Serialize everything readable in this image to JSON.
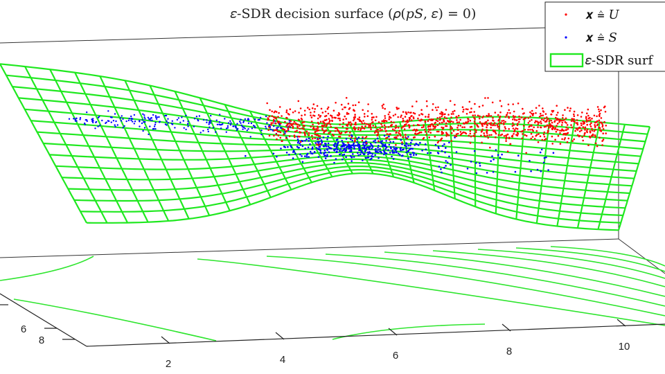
{
  "chart_data": {
    "type": "scatter",
    "title": "ε-SDR decision surface (ρ(p_S, ε) = 0)",
    "title_display": "𝜀-SDR decision surface (𝜌(𝑝𝑆, 𝜀) = 0)",
    "x_ticks": [
      "2",
      "4",
      "6",
      "8",
      "10"
    ],
    "y_ticks": [
      "6",
      "8"
    ],
    "legend": {
      "placement": "top-right",
      "entries": [
        {
          "label": "𝒙 ≙ 𝑈",
          "color": "#ff0000",
          "marker": "dot"
        },
        {
          "label": "𝒙 ≙ 𝑆",
          "color": "#0000ff",
          "marker": "dot"
        },
        {
          "label": "𝜀-SDR surf",
          "color": "#00e600",
          "marker": "box"
        }
      ]
    },
    "series": [
      {
        "name": "𝒙 ≙ 𝑈",
        "color": "#ff0000"
      },
      {
        "name": "𝒙 ≙ 𝑆",
        "color": "#0000ff"
      }
    ],
    "surface_color": "#00e600",
    "contour_color": "#00e600",
    "grid": false
  }
}
